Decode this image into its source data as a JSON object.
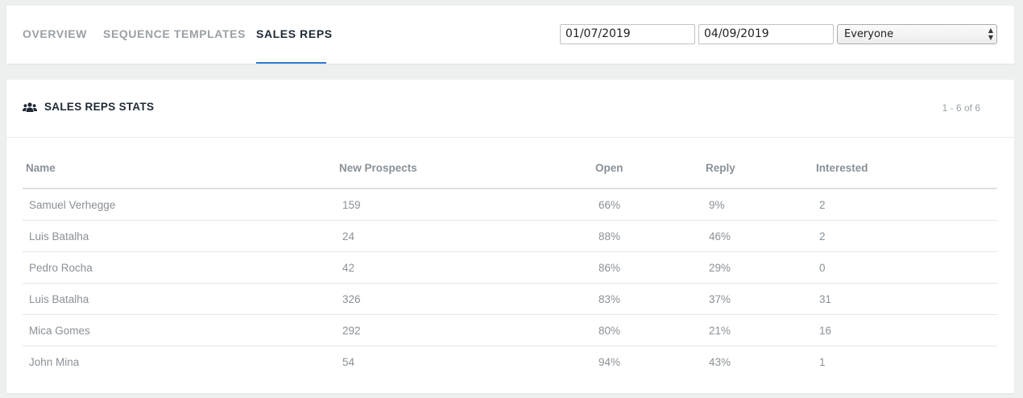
{
  "tabs": [
    {
      "label": "OVERVIEW"
    },
    {
      "label": "SEQUENCE TEMPLATES"
    },
    {
      "label": "SALES REPS"
    }
  ],
  "filters": {
    "start_date": "01/07/2019",
    "end_date": "04/09/2019",
    "owner": "Everyone"
  },
  "panel": {
    "title": "SALES REPS STATS",
    "icon": "users-icon",
    "pagination": "1 - 6 of 6"
  },
  "table": {
    "headers": {
      "name": "Name",
      "new_prospects": "New Prospects",
      "open": "Open",
      "reply": "Reply",
      "interested": "Interested"
    },
    "rows": [
      {
        "name": "Samuel Verhegge",
        "new_prospects": "159",
        "open": "66%",
        "reply": "9%",
        "interested": "2"
      },
      {
        "name": "Luis Batalha",
        "new_prospects": "24",
        "open": "88%",
        "reply": "46%",
        "interested": "2"
      },
      {
        "name": "Pedro Rocha",
        "new_prospects": "42",
        "open": "86%",
        "reply": "29%",
        "interested": "0"
      },
      {
        "name": "Luis Batalha",
        "new_prospects": "326",
        "open": "83%",
        "reply": "37%",
        "interested": "31"
      },
      {
        "name": "Mica Gomes",
        "new_prospects": "292",
        "open": "80%",
        "reply": "21%",
        "interested": "16"
      },
      {
        "name": "John Mina",
        "new_prospects": "54",
        "open": "94%",
        "reply": "43%",
        "interested": "1"
      }
    ]
  },
  "colors": {
    "accent": "#2f7bd1",
    "heading": "#1f2a35",
    "muted": "#9aa1a6",
    "background": "#eef0f0"
  }
}
